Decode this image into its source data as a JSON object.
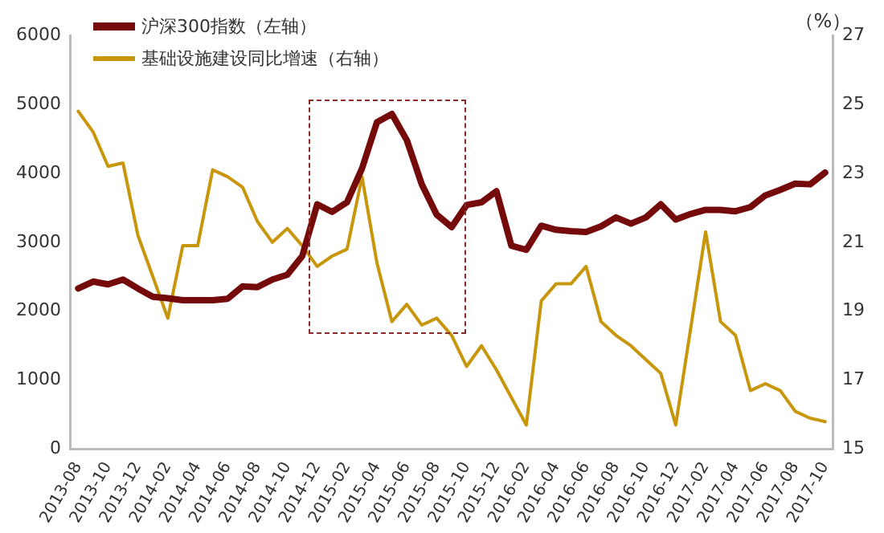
{
  "chart_data": {
    "type": "line",
    "categories": [
      "2013-08",
      null,
      "2013-10",
      null,
      "2013-12",
      null,
      "2014-02",
      null,
      "2014-04",
      null,
      "2014-06",
      null,
      "2014-08",
      null,
      "2014-10",
      null,
      "2014-12",
      null,
      "2015-02",
      null,
      "2015-04",
      null,
      "2015-06",
      null,
      "2015-08",
      null,
      "2015-10",
      null,
      "2015-12",
      null,
      "2016-02",
      null,
      "2016-04",
      null,
      "2016-06",
      null,
      "2016-08",
      null,
      "2016-10",
      null,
      "2016-12",
      null,
      "2017-02",
      null,
      "2017-04",
      null,
      "2017-06",
      null,
      "2017-08",
      null,
      "2017-10"
    ],
    "series": [
      {
        "name": "沪深300指数（左轴）",
        "color": "#740a0a",
        "values": [
          2330,
          2430,
          2390,
          2460,
          2330,
          2210,
          2190,
          2160,
          2160,
          2160,
          2180,
          2360,
          2350,
          2460,
          2530,
          2800,
          3550,
          3440,
          3580,
          4070,
          4740,
          4860,
          4480,
          3840,
          3400,
          3220,
          3540,
          3580,
          3740,
          2950,
          2890,
          3240,
          3180,
          3160,
          3150,
          3230,
          3360,
          3270,
          3360,
          3550,
          3330,
          3410,
          3470,
          3470,
          3450,
          3510,
          3680,
          3760,
          3850,
          3840,
          4010
        ]
      },
      {
        "name": "基础设施建设同比增速（右轴）",
        "color": "#c8960a",
        "axis": "y2",
        "values": [
          24.8,
          24.2,
          23.2,
          23.3,
          21.2,
          20.0,
          18.8,
          20.9,
          20.9,
          23.1,
          22.9,
          22.6,
          21.6,
          21.0,
          21.4,
          20.9,
          20.3,
          20.6,
          20.8,
          22.9,
          20.4,
          18.7,
          19.2,
          18.6,
          18.8,
          18.3,
          17.4,
          18.0,
          17.3,
          16.5,
          15.7,
          19.3,
          19.8,
          19.8,
          20.3,
          18.7,
          18.3,
          18.0,
          17.6,
          17.2,
          15.7,
          18.5,
          21.3,
          18.7,
          18.3,
          16.7,
          16.9,
          16.7,
          16.1,
          15.9,
          15.8
        ]
      }
    ],
    "y2label": "（%）",
    "ylim": [
      0,
      6000
    ],
    "yticks": [
      0,
      1000,
      2000,
      3000,
      4000,
      5000,
      6000
    ],
    "y2lim": [
      15,
      27
    ],
    "y2ticks": [
      15,
      17,
      19,
      21,
      23,
      25,
      27
    ],
    "grid": false,
    "legend": "top left",
    "marker": "none",
    "line_style": "solid"
  }
}
